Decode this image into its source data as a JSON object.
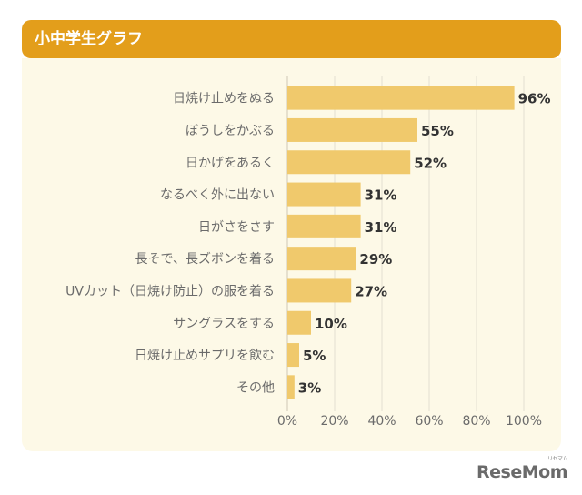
{
  "header": {
    "title": "小中学生グラフ"
  },
  "logo": {
    "text": "ReseMom",
    "sub": "リセマム"
  },
  "colors": {
    "header": "#e39e1b",
    "panel": "#fdf9e7",
    "bar": "#f0c96c",
    "grid": "#e4dfd0",
    "axis_text": "#6b6b6b",
    "value_text": "#333333"
  },
  "chart_data": {
    "type": "bar",
    "orientation": "horizontal",
    "categories": [
      "日焼け止めをぬる",
      "ぼうしをかぶる",
      "日かげをあるく",
      "なるべく外に出ない",
      "日がさをさす",
      "長そで、長ズボンを着る",
      "UVカット（日焼け防止）の服を着る",
      "サングラスをする",
      "日焼け止めサプリを飲む",
      "その他"
    ],
    "values": [
      96,
      55,
      52,
      31,
      31,
      29,
      27,
      10,
      5,
      3
    ],
    "value_labels": [
      "96%",
      "55%",
      "52%",
      "31%",
      "31%",
      "29%",
      "27%",
      "10%",
      "5%",
      "3%"
    ],
    "xlim": [
      0,
      100
    ],
    "xticks": [
      0,
      20,
      40,
      60,
      80,
      100
    ],
    "xtick_labels": [
      "0%",
      "20%",
      "40%",
      "60%",
      "80%",
      "100%"
    ],
    "grid": true,
    "legend": "none"
  }
}
